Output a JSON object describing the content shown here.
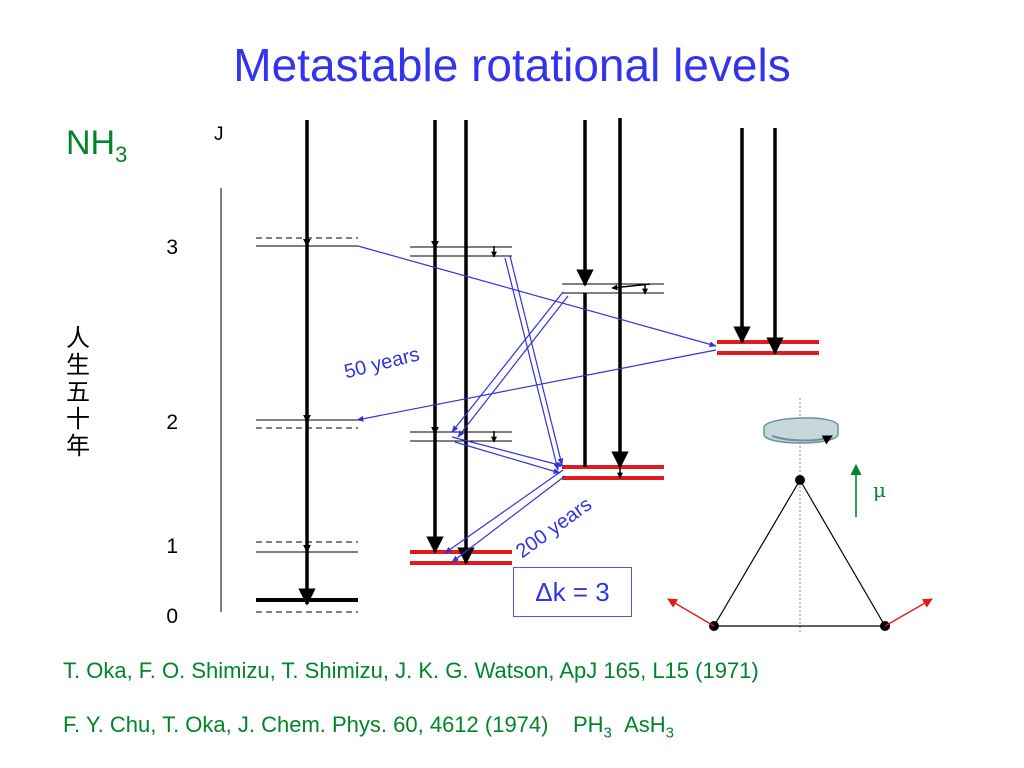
{
  "title": "Metastable rotational levels",
  "molecule": {
    "base": "NH",
    "sub": "3"
  },
  "j_axis_label": "J",
  "levels": {
    "j3": "3",
    "j2": "2",
    "j1": "1",
    "j0": "0"
  },
  "kanji": [
    "人",
    "生",
    "五",
    "十",
    "年"
  ],
  "label_50_years": "50 years",
  "label_200_years": "200 years",
  "delta_k": "Δk = 3",
  "mu_symbol": "μ",
  "ref1": "T. Oka, F. O. Shimizu, T. Shimizu, J. K. G. Watson, ApJ 165, L15 (1971)",
  "ref2": {
    "text": "F. Y. Chu, T. Oka, J. Chem. Phys. 60, 4612 (1974)",
    "ph_base": "PH",
    "ph_sub": "3",
    "as_base": "AsH",
    "as_sub": "3"
  },
  "colors": {
    "title": "#3333ee",
    "molecule": "#00852a",
    "metastable": "#e01b1b",
    "transition": "#3333dd",
    "dipole": "#00852a",
    "bond_arrow": "#e01b1b"
  }
}
